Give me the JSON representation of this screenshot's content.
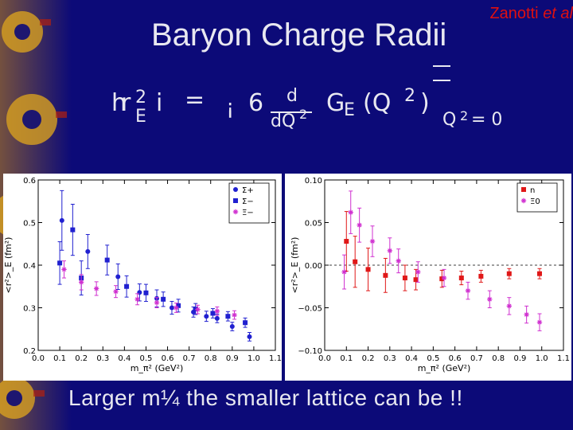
{
  "slide": {
    "credit_name": "Zanotti",
    "credit_etal": "et al",
    "title": "Baryon Charge Radii",
    "formula": {
      "lhs_h": "h",
      "lhs_r": "r",
      "lhs_sup": "2",
      "lhs_sub": "E",
      "lhs_i": "i",
      "equals": "=",
      "minus": "¡",
      "six": "6",
      "frac_num": "d",
      "frac_den": "dQ",
      "frac_den_sup": "2",
      "ge": "G",
      "ge_sub": "E",
      "paren_open": "(Q",
      "paren_sup": "2",
      "paren_close": ")",
      "eval_q": "Q",
      "eval_sup": "2",
      "eval_eq": "= 0"
    },
    "footer": "Larger m¼ the smaller lattice can be !!"
  },
  "colors": {
    "background": "#0c0a78",
    "text": "#e8e8f0",
    "credit": "#e01010",
    "sigma_plus": "#2020d0",
    "sigma_minus": "#2020d0",
    "xi_minus": "#d030d0",
    "neutron": "#e01818",
    "xi_zero": "#d030d0"
  },
  "chart_data": [
    {
      "type": "scatter",
      "xlabel": "m_π² (GeV²)",
      "ylabel": "<r²>_E (fm²)",
      "xlim": [
        0.0,
        1.1
      ],
      "ylim": [
        0.2,
        0.6
      ],
      "xticks": [
        "0.0",
        "0.1",
        "0.2",
        "0.3",
        "0.4",
        "0.5",
        "0.6",
        "0.7",
        "0.8",
        "0.9",
        "1.0",
        "1.1"
      ],
      "yticks": [
        "0.2",
        "0.3",
        "0.4",
        "0.5",
        "0.6"
      ],
      "legend": "top-right",
      "series": [
        {
          "name": "Σ+",
          "marker": "circle",
          "color": "#2020d0",
          "x": [
            0.11,
            0.23,
            0.37,
            0.47,
            0.55,
            0.62,
            0.72,
            0.78,
            0.83,
            0.9,
            0.98
          ],
          "y": [
            0.505,
            0.432,
            0.373,
            0.336,
            0.322,
            0.3,
            0.29,
            0.28,
            0.275,
            0.256,
            0.232
          ],
          "err": [
            0.07,
            0.04,
            0.03,
            0.02,
            0.02,
            0.015,
            0.012,
            0.012,
            0.01,
            0.01,
            0.01
          ]
        },
        {
          "name": "Σ−",
          "marker": "square",
          "color": "#2020d0",
          "x": [
            0.1,
            0.16,
            0.2,
            0.32,
            0.41,
            0.5,
            0.58,
            0.65,
            0.73,
            0.81,
            0.88,
            0.96
          ],
          "y": [
            0.405,
            0.483,
            0.37,
            0.412,
            0.35,
            0.335,
            0.32,
            0.305,
            0.297,
            0.287,
            0.28,
            0.265
          ],
          "err": [
            0.05,
            0.06,
            0.04,
            0.035,
            0.025,
            0.02,
            0.017,
            0.015,
            0.013,
            0.011,
            0.011,
            0.011
          ]
        },
        {
          "name": "Ξ−",
          "marker": "star",
          "color": "#d030d0",
          "x": [
            0.12,
            0.2,
            0.27,
            0.36,
            0.46,
            0.55,
            0.64,
            0.74,
            0.83,
            0.91
          ],
          "y": [
            0.39,
            0.36,
            0.345,
            0.338,
            0.32,
            0.312,
            0.3,
            0.296,
            0.292,
            0.283
          ],
          "err": [
            0.02,
            0.018,
            0.016,
            0.014,
            0.013,
            0.012,
            0.011,
            0.01,
            0.01,
            0.01
          ]
        }
      ]
    },
    {
      "type": "scatter",
      "xlabel": "m_π² (GeV²)",
      "ylabel": "<r²>_E (fm²)",
      "xlim": [
        0.0,
        1.1
      ],
      "ylim": [
        -0.1,
        0.1
      ],
      "xticks": [
        "0.0",
        "0.1",
        "0.2",
        "0.3",
        "0.4",
        "0.5",
        "0.6",
        "0.7",
        "0.8",
        "0.9",
        "1.0",
        "1.1"
      ],
      "yticks": [
        "−0.10",
        "−0.05",
        "0.00",
        "0.05",
        "0.10"
      ],
      "legend": "top-right",
      "series": [
        {
          "name": "n",
          "marker": "square",
          "color": "#e01818",
          "x": [
            0.1,
            0.14,
            0.2,
            0.28,
            0.37,
            0.42,
            0.54,
            0.63,
            0.72,
            0.85,
            0.99
          ],
          "y": [
            0.028,
            0.004,
            -0.005,
            -0.012,
            -0.015,
            -0.017,
            -0.016,
            -0.015,
            -0.013,
            -0.01,
            -0.01
          ],
          "err": [
            0.035,
            0.03,
            0.025,
            0.02,
            0.015,
            0.012,
            0.01,
            0.008,
            0.007,
            0.006,
            0.006
          ]
        },
        {
          "name": "Ξ0",
          "marker": "star",
          "color": "#d030d0",
          "x": [
            0.09,
            0.12,
            0.16,
            0.22,
            0.3,
            0.34,
            0.43,
            0.55,
            0.66,
            0.76,
            0.85,
            0.93,
            0.99
          ],
          "y": [
            -0.008,
            0.062,
            0.047,
            0.028,
            0.017,
            0.005,
            -0.008,
            -0.015,
            -0.03,
            -0.04,
            -0.048,
            -0.058,
            -0.067
          ],
          "err": [
            0.02,
            0.025,
            0.02,
            0.018,
            0.015,
            0.014,
            0.012,
            0.01,
            0.01,
            0.01,
            0.01,
            0.01,
            0.01
          ]
        }
      ]
    }
  ]
}
